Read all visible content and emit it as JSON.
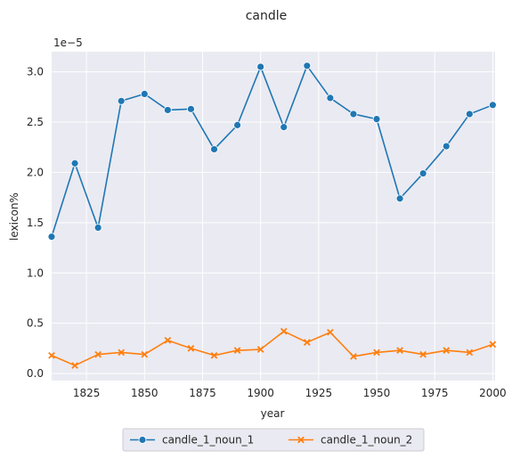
{
  "chart_data": {
    "type": "line",
    "title": "candle",
    "xlabel": "year",
    "ylabel": "lexicon%",
    "y_multiplier_label": "1e−5",
    "xlim": [
      1810,
      2001
    ],
    "ylim": [
      -0.07,
      3.2
    ],
    "x_ticks": [
      1825,
      1850,
      1875,
      1900,
      1925,
      1950,
      1975,
      2000
    ],
    "y_ticks": [
      0.0,
      0.5,
      1.0,
      1.5,
      2.0,
      2.5,
      3.0
    ],
    "y_tick_labels": [
      "0.0",
      "0.5",
      "1.0",
      "1.5",
      "2.0",
      "2.5",
      "3.0"
    ],
    "grid": true,
    "legend_position": "bottom-center",
    "x": [
      1810,
      1820,
      1830,
      1840,
      1850,
      1860,
      1870,
      1880,
      1890,
      1900,
      1910,
      1920,
      1930,
      1940,
      1950,
      1960,
      1970,
      1980,
      1990,
      2000
    ],
    "series": [
      {
        "name": "candle_1_noun_1",
        "color": "#1f77b4",
        "marker": "circle",
        "values": [
          1.36,
          2.09,
          1.45,
          2.71,
          2.78,
          2.62,
          2.63,
          2.23,
          2.47,
          3.05,
          2.45,
          3.06,
          2.74,
          2.58,
          2.53,
          1.74,
          1.99,
          2.26,
          2.58,
          2.67
        ]
      },
      {
        "name": "candle_1_noun_2",
        "color": "#ff7f0e",
        "marker": "x",
        "values": [
          0.18,
          0.08,
          0.19,
          0.21,
          0.19,
          0.33,
          0.25,
          0.18,
          0.23,
          0.24,
          0.42,
          0.31,
          0.41,
          0.17,
          0.21,
          0.23,
          0.19,
          0.23,
          0.21,
          0.29
        ]
      }
    ]
  }
}
